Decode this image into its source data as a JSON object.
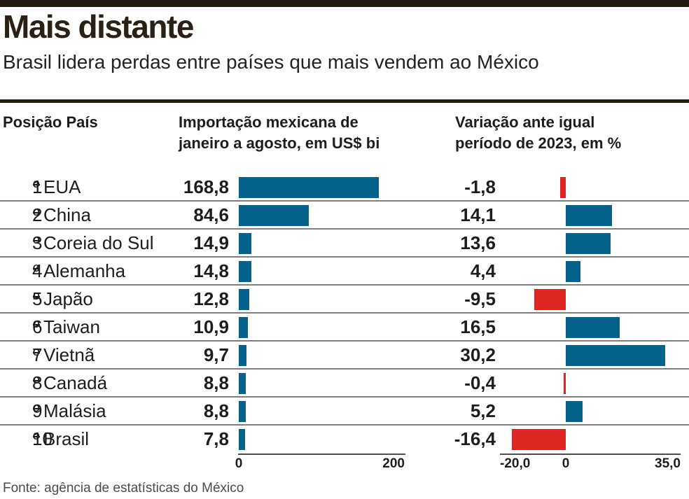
{
  "theme": {
    "bar_blue": "#05628c",
    "bar_red": "#dd2521",
    "dark": "#251b10",
    "title_color": "#2b2014",
    "separator": "#7f7f7f",
    "axis_line": "#4d4d4d",
    "source_color": "#4b4b4b"
  },
  "header": {
    "title": "Mais distante",
    "subtitle": "Brasil lidera perdas entre países que mais vendem ao México"
  },
  "table": {
    "headers": {
      "position": "Posição País",
      "imports": "Importação mexicana de janeiro a agosto, em US$ bi",
      "variation": "Variação ante igual período de 2023, em %"
    },
    "rows": [
      {
        "position": "1º",
        "country": "EUA",
        "import_label": "168,8",
        "import_value": 168.8,
        "variation_label": "-1,8",
        "variation_value": -1.8
      },
      {
        "position": "2º",
        "country": "China",
        "import_label": "84,6",
        "import_value": 84.6,
        "variation_label": "14,1",
        "variation_value": 14.1
      },
      {
        "position": "3º",
        "country": "Coreia do Sul",
        "import_label": "14,9",
        "import_value": 14.9,
        "variation_label": "13,6",
        "variation_value": 13.6
      },
      {
        "position": "4º",
        "country": "Alemanha",
        "import_label": "14,8",
        "import_value": 14.8,
        "variation_label": "4,4",
        "variation_value": 4.4
      },
      {
        "position": "5º",
        "country": "Japão",
        "import_label": "12,8",
        "import_value": 12.8,
        "variation_label": "-9,5",
        "variation_value": -9.5
      },
      {
        "position": "6º",
        "country": "Taiwan",
        "import_label": "10,9",
        "import_value": 10.9,
        "variation_label": "16,5",
        "variation_value": 16.5
      },
      {
        "position": "7º",
        "country": "Vietnã",
        "import_label": "9,7",
        "import_value": 9.7,
        "variation_label": "30,2",
        "variation_value": 30.2
      },
      {
        "position": "8º",
        "country": "Canadá",
        "import_label": "8,8",
        "import_value": 8.8,
        "variation_label": "-0,4",
        "variation_value": -0.4
      },
      {
        "position": "9º",
        "country": "Malásia",
        "import_label": "8,8",
        "import_value": 8.8,
        "variation_label": "5,2",
        "variation_value": 5.2
      },
      {
        "position": "10º",
        "country": "Brasil",
        "import_label": "7,8",
        "import_value": 7.8,
        "variation_label": "-16,4",
        "variation_value": -16.4
      }
    ]
  },
  "chart_data": {
    "type": "bar",
    "orientation": "horizontal",
    "title": "Mais distante",
    "subtitle": "Brasil lidera perdas entre países que mais vendem ao México",
    "positions": [
      "1º",
      "2º",
      "3º",
      "4º",
      "5º",
      "6º",
      "7º",
      "8º",
      "9º",
      "10º"
    ],
    "categories": [
      "EUA",
      "China",
      "Coreia do Sul",
      "Alemanha",
      "Japão",
      "Taiwan",
      "Vietnã",
      "Canadá",
      "Malásia",
      "Brasil"
    ],
    "series": [
      {
        "name": "Importação mexicana de janeiro a agosto, em US$ bi",
        "values": [
          168.8,
          84.6,
          14.9,
          14.8,
          12.8,
          10.9,
          9.7,
          8.8,
          8.8,
          7.8
        ],
        "xlim": [
          0,
          200
        ],
        "tick_labels": [
          "0",
          "200"
        ],
        "bar_color": "#05628c"
      },
      {
        "name": "Variação ante igual período de 2023, em %",
        "values": [
          -1.8,
          14.1,
          13.6,
          4.4,
          -9.5,
          16.5,
          30.2,
          -0.4,
          5.2,
          -16.4
        ],
        "xlim": [
          -20,
          35
        ],
        "tick_labels": [
          "-20,0",
          "0",
          "35,0"
        ],
        "bar_color_positive": "#05628c",
        "bar_color_negative": "#dd2521"
      }
    ],
    "grid": false,
    "legend": false
  },
  "footer": {
    "source": "Fonte: agência de estatísticas do México"
  }
}
